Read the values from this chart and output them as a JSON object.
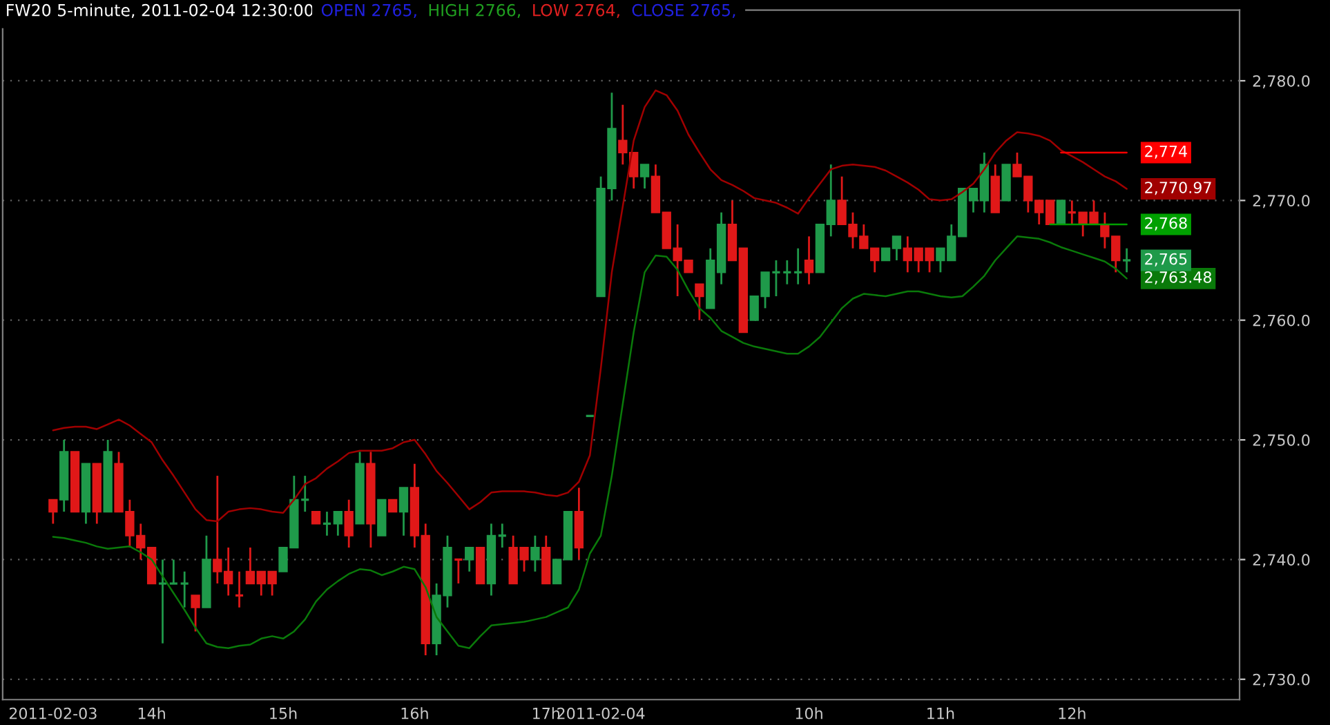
{
  "chart_data": {
    "type": "candlestick",
    "title": "FW20 5-minute, 2011-02-04 12:30:00",
    "annotations": [
      "OPEN 2765,",
      "HIGH 2766,",
      "LOW 2764,",
      "CLOSE 2765,"
    ],
    "value_labels": [
      null,
      null,
      null,
      null,
      null,
      null,
      null,
      null,
      null,
      null,
      null,
      null,
      null,
      null,
      null,
      null,
      null,
      null,
      null,
      null,
      null,
      null,
      null,
      null,
      null,
      null,
      null,
      null,
      null,
      null,
      null,
      null,
      null,
      null,
      null,
      null,
      null,
      null,
      null,
      null,
      null,
      null,
      null,
      null,
      null,
      null,
      null,
      null,
      null,
      null,
      null,
      null,
      null,
      null,
      null,
      null,
      null,
      null,
      null,
      null,
      null,
      null,
      null,
      null,
      null,
      null,
      null,
      null,
      null,
      null,
      null,
      null,
      null,
      null,
      null,
      null,
      null,
      null,
      null,
      null,
      null,
      null,
      null,
      null,
      null,
      null,
      null,
      null,
      null,
      null,
      null,
      null,
      null,
      null,
      null,
      null,
      null,
      null,
      "2,765"
    ],
    "categories": [
      "2011-02-03",
      null,
      null,
      null,
      null,
      null,
      null,
      null,
      null,
      "14h",
      null,
      null,
      null,
      null,
      null,
      null,
      null,
      null,
      null,
      null,
      null,
      "15h",
      null,
      null,
      null,
      null,
      null,
      null,
      null,
      null,
      null,
      null,
      null,
      "16h",
      null,
      null,
      null,
      null,
      null,
      null,
      null,
      null,
      null,
      null,
      null,
      "17h",
      null,
      null,
      null,
      null,
      "2011-02-04",
      null,
      null,
      null,
      null,
      null,
      null,
      null,
      null,
      null,
      null,
      null,
      null,
      null,
      null,
      null,
      null,
      null,
      null,
      "10h",
      null,
      null,
      null,
      null,
      null,
      null,
      null,
      null,
      null,
      null,
      null,
      "11h",
      null,
      null,
      null,
      null,
      null,
      null,
      null,
      null,
      null,
      null,
      null,
      "12h",
      null,
      null,
      null,
      null,
      null
    ],
    "ohlc": [
      [
        2745,
        2745,
        2743,
        2744
      ],
      [
        2745,
        2750,
        2744,
        2749
      ],
      [
        2749,
        2749,
        2744,
        2744
      ],
      [
        2744,
        2748,
        2743,
        2748
      ],
      [
        2748,
        2748,
        2743,
        2744
      ],
      [
        2744,
        2750,
        2744,
        2749
      ],
      [
        2748,
        2749,
        2744,
        2744
      ],
      [
        2744,
        2745,
        2741,
        2742
      ],
      [
        2742,
        2743,
        2740,
        2741
      ],
      [
        2741,
        2741,
        2738,
        2738
      ],
      [
        2738,
        2740,
        2733,
        2738
      ],
      [
        2738,
        2740,
        2738,
        2738
      ],
      [
        2738,
        2739,
        2736,
        2738
      ],
      [
        2737,
        2737,
        2734,
        2736
      ],
      [
        2736,
        2742,
        2736,
        2740
      ],
      [
        2740,
        2747,
        2738,
        2739
      ],
      [
        2739,
        2741,
        2737,
        2738
      ],
      [
        2737,
        2739,
        2736,
        2737
      ],
      [
        2739,
        2741,
        2738,
        2738
      ],
      [
        2739,
        2739,
        2737,
        2738
      ],
      [
        2739,
        2739,
        2737,
        2738
      ],
      [
        2739,
        2741,
        2739,
        2741
      ],
      [
        2741,
        2747,
        2741,
        2745
      ],
      [
        2745,
        2747,
        2744,
        2745
      ],
      [
        2744,
        2744,
        2743,
        2743
      ],
      [
        2743,
        2744,
        2742,
        2743
      ],
      [
        2743,
        2744,
        2742,
        2744
      ],
      [
        2744,
        2745,
        2741,
        2742
      ],
      [
        2743,
        2749,
        2743,
        2748
      ],
      [
        2748,
        2749,
        2741,
        2743
      ],
      [
        2742,
        2745,
        2742,
        2745
      ],
      [
        2745,
        2745,
        2744,
        2744
      ],
      [
        2744,
        2746,
        2742,
        2746
      ],
      [
        2746,
        2748,
        2741,
        2742
      ],
      [
        2742,
        2743,
        2732,
        2733
      ],
      [
        2733,
        2738,
        2732,
        2737
      ],
      [
        2737,
        2742,
        2736,
        2741
      ],
      [
        2740,
        2740,
        2738,
        2740
      ],
      [
        2740,
        2741,
        2739,
        2741
      ],
      [
        2741,
        2741,
        2738,
        2738
      ],
      [
        2738,
        2743,
        2737,
        2742
      ],
      [
        2742,
        2743,
        2741,
        2742
      ],
      [
        2741,
        2742,
        2738,
        2738
      ],
      [
        2741,
        2741,
        2739,
        2740
      ],
      [
        2740,
        2742,
        2739,
        2741
      ],
      [
        2741,
        2742,
        2738,
        2738
      ],
      [
        2738,
        2740,
        2738,
        2740
      ],
      [
        2740,
        2744,
        2740,
        2744
      ],
      [
        2744,
        2746,
        2740,
        2741
      ],
      [
        2752,
        2752,
        2752,
        2752
      ],
      [
        2762,
        2772,
        2762,
        2771
      ],
      [
        2771,
        2779,
        2770,
        2776
      ],
      [
        2775,
        2778,
        2773,
        2774
      ],
      [
        2774,
        2774,
        2771,
        2772
      ],
      [
        2772,
        2773,
        2771,
        2773
      ],
      [
        2772,
        2773,
        2769,
        2769
      ],
      [
        2769,
        2769,
        2766,
        2766
      ],
      [
        2766,
        2768,
        2762,
        2765
      ],
      [
        2765,
        2765,
        2764,
        2764
      ],
      [
        2763,
        2763,
        2760,
        2762
      ],
      [
        2761,
        2766,
        2761,
        2765
      ],
      [
        2764,
        2769,
        2763,
        2768
      ],
      [
        2768,
        2770,
        2765,
        2765
      ],
      [
        2766,
        2766,
        2759,
        2759
      ],
      [
        2760,
        2762,
        2760,
        2762
      ],
      [
        2762,
        2764,
        2761,
        2764
      ],
      [
        2764,
        2765,
        2762,
        2764
      ],
      [
        2764,
        2765,
        2763,
        2764
      ],
      [
        2764,
        2766,
        2763,
        2764
      ],
      [
        2765,
        2767,
        2763,
        2764
      ],
      [
        2764,
        2768,
        2764,
        2768
      ],
      [
        2768,
        2773,
        2767,
        2770
      ],
      [
        2770,
        2772,
        2768,
        2768
      ],
      [
        2768,
        2769,
        2766,
        2767
      ],
      [
        2767,
        2768,
        2766,
        2766
      ],
      [
        2766,
        2766,
        2764,
        2765
      ],
      [
        2765,
        2766,
        2765,
        2766
      ],
      [
        2766,
        2767,
        2765,
        2767
      ],
      [
        2766,
        2767,
        2764,
        2765
      ],
      [
        2766,
        2766,
        2764,
        2765
      ],
      [
        2766,
        2766,
        2764,
        2765
      ],
      [
        2765,
        2766,
        2764,
        2766
      ],
      [
        2765,
        2768,
        2765,
        2767
      ],
      [
        2767,
        2771,
        2767,
        2771
      ],
      [
        2770,
        2771,
        2769,
        2771
      ],
      [
        2770,
        2774,
        2769,
        2773
      ],
      [
        2772,
        2773,
        2769,
        2769
      ],
      [
        2770,
        2773,
        2770,
        2773
      ],
      [
        2773,
        2774,
        2772,
        2772
      ],
      [
        2772,
        2772,
        2769,
        2770
      ],
      [
        2770,
        2770,
        2768,
        2769
      ],
      [
        2770,
        2770,
        2768,
        2768
      ],
      [
        2768,
        2770,
        2768,
        2770
      ],
      [
        2769,
        2770,
        2768,
        2769
      ],
      [
        2769,
        2769,
        2767,
        2768
      ],
      [
        2769,
        2770,
        2768,
        2768
      ],
      [
        2768,
        2769,
        2766,
        2767
      ],
      [
        2767,
        2767,
        2764,
        2765
      ],
      [
        2765,
        2766,
        2764,
        2765
      ]
    ],
    "colors": [
      "#e01818",
      "#1f9a4a",
      "#e01818",
      "#1f9a4a",
      "#e01818",
      "#1f9a4a",
      "#e01818",
      "#e01818",
      "#e01818",
      "#e01818",
      "#1f9a4a",
      "#1f9a4a",
      "#1f9a4a",
      "#e01818",
      "#1f9a4a",
      "#e01818",
      "#e01818",
      "#e01818",
      "#e01818",
      "#e01818",
      "#e01818",
      "#1f9a4a",
      "#1f9a4a",
      "#1f9a4a",
      "#e01818",
      "#1f9a4a",
      "#1f9a4a",
      "#e01818",
      "#1f9a4a",
      "#e01818",
      "#1f9a4a",
      "#e01818",
      "#1f9a4a",
      "#e01818",
      "#e01818",
      "#1f9a4a",
      "#1f9a4a",
      "#e01818",
      "#1f9a4a",
      "#e01818",
      "#1f9a4a",
      "#1f9a4a",
      "#e01818",
      "#e01818",
      "#1f9a4a",
      "#e01818",
      "#1f9a4a",
      "#1f9a4a",
      "#e01818",
      "#1f9a4a",
      "#1f9a4a",
      "#1f9a4a",
      "#e01818",
      "#e01818",
      "#1f9a4a",
      "#e01818",
      "#e01818",
      "#e01818",
      "#e01818",
      "#e01818",
      "#1f9a4a",
      "#1f9a4a",
      "#e01818",
      "#e01818",
      "#1f9a4a",
      "#1f9a4a",
      "#1f9a4a",
      "#1f9a4a",
      "#1f9a4a",
      "#e01818",
      "#1f9a4a",
      "#1f9a4a",
      "#e01818",
      "#e01818",
      "#e01818",
      "#e01818",
      "#1f9a4a",
      "#1f9a4a",
      "#e01818",
      "#e01818",
      "#e01818",
      "#1f9a4a",
      "#1f9a4a",
      "#1f9a4a",
      "#1f9a4a",
      "#1f9a4a",
      "#e01818",
      "#1f9a4a",
      "#e01818",
      "#e01818",
      "#e01818",
      "#e01818",
      "#1f9a4a",
      "#e01818",
      "#e01818",
      "#e01818",
      "#e01818",
      "#e01818",
      "#1f9a4a"
    ],
    "series": [
      {
        "type": "line",
        "color": "#a00000",
        "values": [
          2750.8,
          2751,
          2751.1,
          2751.1,
          2750.9,
          2751.3,
          2751.7,
          2751.2,
          2750.5,
          2749.8,
          2748.3,
          2747,
          2745.6,
          2744.2,
          2743.3,
          2743.2,
          2744,
          2744.2,
          2744.3,
          2744.2,
          2744,
          2743.9,
          2745,
          2746.3,
          2746.8,
          2747.6,
          2748.2,
          2748.9,
          2749.1,
          2749.1,
          2749.1,
          2749.3,
          2749.8,
          2750,
          2748.8,
          2747.4,
          2746.4,
          2745.3,
          2744.2,
          2744.8,
          2745.6,
          2745.7,
          2745.7,
          2745.7,
          2745.6,
          2745.4,
          2745.3,
          2745.6,
          2746.5,
          2748.7,
          2756,
          2764,
          2769.5,
          2775,
          2777.8,
          2779.2,
          2778.8,
          2777.5,
          2775.5,
          2774,
          2772.6,
          2771.7,
          2771.3,
          2770.8,
          2770.2,
          2770,
          2769.8,
          2769.4,
          2768.9,
          2770.2,
          2771.4,
          2772.6,
          2772.9,
          2773,
          2772.9,
          2772.8,
          2772.5,
          2772,
          2771.5,
          2770.9,
          2770.1,
          2770,
          2770.1,
          2770.7,
          2771.4,
          2772.6,
          2774,
          2775,
          2775.7,
          2775.6,
          2775.4,
          2775,
          2774.2,
          2773.7,
          2773.2,
          2772.6,
          2772,
          2771.6,
          2770.97
        ],
        "value_labels": [
          null,
          null,
          null,
          null,
          null,
          null,
          null,
          null,
          null,
          null,
          null,
          null,
          null,
          null,
          null,
          null,
          null,
          null,
          null,
          null,
          null,
          null,
          null,
          null,
          null,
          null,
          null,
          null,
          null,
          null,
          null,
          null,
          null,
          null,
          null,
          null,
          null,
          null,
          null,
          null,
          null,
          null,
          null,
          null,
          null,
          null,
          null,
          null,
          null,
          null,
          null,
          null,
          null,
          null,
          null,
          null,
          null,
          null,
          null,
          null,
          null,
          null,
          null,
          null,
          null,
          null,
          null,
          null,
          null,
          null,
          null,
          null,
          null,
          null,
          null,
          null,
          null,
          null,
          null,
          null,
          null,
          null,
          null,
          null,
          null,
          null,
          null,
          null,
          null,
          null,
          null,
          null,
          null,
          null,
          null,
          null,
          null,
          null,
          "2,770.97"
        ]
      },
      {
        "type": "line",
        "color": "#0a7a0a",
        "values": [
          2741.9,
          2741.8,
          2741.6,
          2741.4,
          2741.1,
          2740.9,
          2741,
          2741.1,
          2740.6,
          2740,
          2738.6,
          2737.2,
          2735.8,
          2734.3,
          2733,
          2732.7,
          2732.6,
          2732.8,
          2732.9,
          2733.4,
          2733.6,
          2733.4,
          2734,
          2735,
          2736.5,
          2737.5,
          2738.2,
          2738.8,
          2739.2,
          2739.1,
          2738.7,
          2739,
          2739.4,
          2739.2,
          2737.7,
          2735.2,
          2734,
          2732.8,
          2732.6,
          2733.6,
          2734.5,
          2734.6,
          2734.7,
          2734.8,
          2735,
          2735.2,
          2735.6,
          2736,
          2737.5,
          2740.5,
          2742,
          2747,
          2753,
          2759,
          2764,
          2765.4,
          2765.3,
          2764.2,
          2762.5,
          2761,
          2760.2,
          2759.1,
          2758.6,
          2758.1,
          2757.8,
          2757.6,
          2757.4,
          2757.2,
          2757.2,
          2757.8,
          2758.6,
          2759.8,
          2761,
          2761.8,
          2762.2,
          2762.1,
          2762,
          2762.2,
          2762.4,
          2762.4,
          2762.2,
          2762,
          2761.9,
          2762,
          2762.8,
          2763.7,
          2765,
          2766,
          2767,
          2766.9,
          2766.8,
          2766.5,
          2766.1,
          2765.8,
          2765.5,
          2765.2,
          2764.9,
          2764.3,
          2763.48
        ],
        "value_labels": [
          null,
          null,
          null,
          null,
          null,
          null,
          null,
          null,
          null,
          null,
          null,
          null,
          null,
          null,
          null,
          null,
          null,
          null,
          null,
          null,
          null,
          null,
          null,
          null,
          null,
          null,
          null,
          null,
          null,
          null,
          null,
          null,
          null,
          null,
          null,
          null,
          null,
          null,
          null,
          null,
          null,
          null,
          null,
          null,
          null,
          null,
          null,
          null,
          null,
          null,
          null,
          null,
          null,
          null,
          null,
          null,
          null,
          null,
          null,
          null,
          null,
          null,
          null,
          null,
          null,
          null,
          null,
          null,
          null,
          null,
          null,
          null,
          null,
          null,
          null,
          null,
          null,
          null,
          null,
          null,
          null,
          null,
          null,
          null,
          null,
          null,
          null,
          null,
          null,
          null,
          null,
          null,
          null,
          null,
          null,
          null,
          null,
          null,
          "2,763.48"
        ]
      },
      {
        "type": "line",
        "color": "#ff0000",
        "values": [
          null,
          null,
          null,
          null,
          null,
          null,
          null,
          null,
          null,
          null,
          null,
          null,
          null,
          null,
          null,
          null,
          null,
          null,
          null,
          null,
          null,
          null,
          null,
          null,
          null,
          null,
          null,
          null,
          null,
          null,
          null,
          null,
          null,
          null,
          null,
          null,
          null,
          null,
          null,
          null,
          null,
          null,
          null,
          null,
          null,
          null,
          null,
          null,
          null,
          null,
          null,
          null,
          null,
          null,
          null,
          null,
          null,
          null,
          null,
          null,
          null,
          null,
          null,
          null,
          null,
          null,
          null,
          null,
          null,
          null,
          null,
          null,
          null,
          null,
          null,
          null,
          null,
          null,
          null,
          null,
          null,
          null,
          null,
          null,
          null,
          null,
          null,
          null,
          null,
          null,
          null,
          null,
          2774,
          2774,
          2774,
          2774,
          2774,
          2774,
          2774
        ],
        "value_labels": [
          null,
          null,
          null,
          null,
          null,
          null,
          null,
          null,
          null,
          null,
          null,
          null,
          null,
          null,
          null,
          null,
          null,
          null,
          null,
          null,
          null,
          null,
          null,
          null,
          null,
          null,
          null,
          null,
          null,
          null,
          null,
          null,
          null,
          null,
          null,
          null,
          null,
          null,
          null,
          null,
          null,
          null,
          null,
          null,
          null,
          null,
          null,
          null,
          null,
          null,
          null,
          null,
          null,
          null,
          null,
          null,
          null,
          null,
          null,
          null,
          null,
          null,
          null,
          null,
          null,
          null,
          null,
          null,
          null,
          null,
          null,
          null,
          null,
          null,
          null,
          null,
          null,
          null,
          null,
          null,
          null,
          null,
          null,
          null,
          null,
          null,
          null,
          null,
          null,
          null,
          null,
          null,
          null,
          null,
          null,
          null,
          null,
          null,
          "2,774"
        ]
      },
      {
        "type": "line",
        "color": "#00a000",
        "values": [
          null,
          null,
          null,
          null,
          null,
          null,
          null,
          null,
          null,
          null,
          null,
          null,
          null,
          null,
          null,
          null,
          null,
          null,
          null,
          null,
          null,
          null,
          null,
          null,
          null,
          null,
          null,
          null,
          null,
          null,
          null,
          null,
          null,
          null,
          null,
          null,
          null,
          null,
          null,
          null,
          null,
          null,
          null,
          null,
          null,
          null,
          null,
          null,
          null,
          null,
          null,
          null,
          null,
          null,
          null,
          null,
          null,
          null,
          null,
          null,
          null,
          null,
          null,
          null,
          null,
          null,
          null,
          null,
          null,
          null,
          null,
          null,
          null,
          null,
          null,
          null,
          null,
          null,
          null,
          null,
          null,
          null,
          null,
          null,
          null,
          null,
          null,
          null,
          null,
          null,
          null,
          2768,
          2768,
          2768,
          2768,
          2768,
          2768,
          2768,
          2768
        ],
        "value_labels": [
          null,
          null,
          null,
          null,
          null,
          null,
          null,
          null,
          null,
          null,
          null,
          null,
          null,
          null,
          null,
          null,
          null,
          null,
          null,
          null,
          null,
          null,
          null,
          null,
          null,
          null,
          null,
          null,
          null,
          null,
          null,
          null,
          null,
          null,
          null,
          null,
          null,
          null,
          null,
          null,
          null,
          null,
          null,
          null,
          null,
          null,
          null,
          null,
          null,
          null,
          null,
          null,
          null,
          null,
          null,
          null,
          null,
          null,
          null,
          null,
          null,
          null,
          null,
          null,
          null,
          null,
          null,
          null,
          null,
          null,
          null,
          null,
          null,
          null,
          null,
          null,
          null,
          null,
          null,
          null,
          null,
          null,
          null,
          null,
          null,
          null,
          null,
          null,
          null,
          null,
          null,
          null,
          null,
          null,
          null,
          null,
          null,
          null,
          "2,768"
        ]
      }
    ],
    "ylim": [
      2728.3,
      2785.9
    ],
    "yticks": [
      {
        "value": 2730,
        "label": "2,730.0"
      },
      {
        "value": 2740,
        "label": "2,740.0"
      },
      {
        "value": 2750,
        "label": "2,750.0"
      },
      {
        "value": 2760,
        "label": "2,760.0"
      },
      {
        "value": 2770,
        "label": "2,770.0"
      },
      {
        "value": 2780,
        "label": "2,780.0"
      }
    ],
    "grid": "y"
  }
}
